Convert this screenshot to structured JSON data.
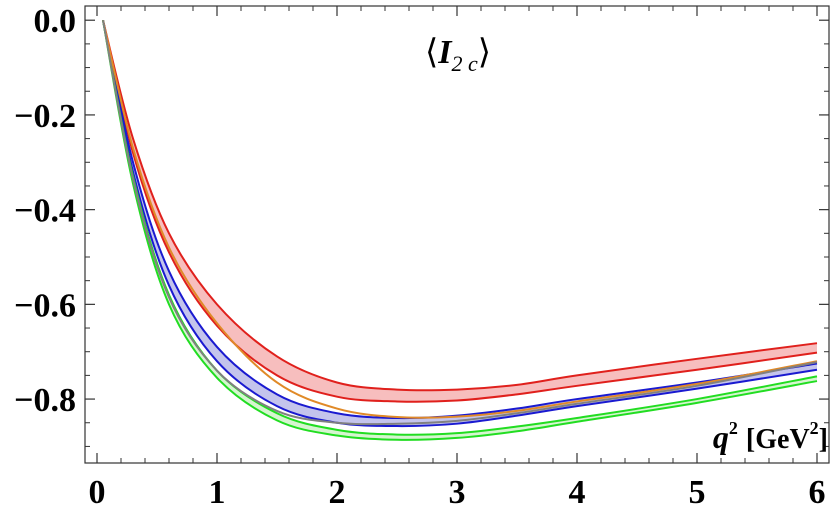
{
  "chart_data": {
    "type": "line",
    "title": "⟨I2 c⟩",
    "title_parts": {
      "main": "I",
      "sub": "2 c",
      "open": "⟨",
      "close": "⟩"
    },
    "xlabel": "q2 [GeV2]",
    "xlabel_parts": {
      "var": "q",
      "sup": "2",
      "unit_open": "[GeV",
      "unit_sup": "2",
      "unit_close": "]"
    },
    "ylabel": "",
    "xlim": [
      -0.1,
      6.1
    ],
    "ylim": [
      -0.935,
      0.03
    ],
    "x_ticks": [
      0,
      1,
      2,
      3,
      4,
      5,
      6
    ],
    "x_tick_labels": [
      "0",
      "1",
      "2",
      "3",
      "4",
      "5",
      "6"
    ],
    "y_ticks": [
      0.0,
      -0.2,
      -0.4,
      -0.6,
      -0.8
    ],
    "y_tick_labels": [
      "0.0",
      "−0.2",
      "−0.4",
      "−0.6",
      "−0.8"
    ],
    "grid": false,
    "legend": "none",
    "bands": [
      {
        "color": "#e0201c",
        "fill": "#f4a8a8",
        "upper": {
          "x": [
            0.05,
            0.3,
            0.6,
            1.0,
            1.5,
            2.0,
            2.5,
            3.0,
            3.5,
            4.0,
            5.0,
            6.0
          ],
          "y": [
            0.0,
            -0.25,
            -0.45,
            -0.6,
            -0.71,
            -0.765,
            -0.78,
            -0.78,
            -0.77,
            -0.75,
            -0.715,
            -0.682
          ]
        },
        "lower": {
          "x": [
            0.05,
            0.3,
            0.6,
            1.0,
            1.5,
            2.0,
            2.5,
            3.0,
            3.5,
            4.0,
            5.0,
            6.0
          ],
          "y": [
            0.0,
            -0.28,
            -0.49,
            -0.645,
            -0.75,
            -0.795,
            -0.805,
            -0.803,
            -0.79,
            -0.772,
            -0.738,
            -0.702
          ]
        }
      },
      {
        "color": "#1a1ad0",
        "fill": "#b0b0e6",
        "upper": {
          "x": [
            0.05,
            0.3,
            0.6,
            1.0,
            1.5,
            2.0,
            2.5,
            3.0,
            3.5,
            4.0,
            5.0,
            6.0
          ],
          "y": [
            0.0,
            -0.3,
            -0.53,
            -0.69,
            -0.79,
            -0.83,
            -0.84,
            -0.835,
            -0.82,
            -0.8,
            -0.765,
            -0.725
          ]
        },
        "lower": {
          "x": [
            0.05,
            0.3,
            0.6,
            1.0,
            1.5,
            2.0,
            2.5,
            3.0,
            3.5,
            4.0,
            5.0,
            6.0
          ],
          "y": [
            0.0,
            -0.32,
            -0.56,
            -0.72,
            -0.815,
            -0.85,
            -0.857,
            -0.852,
            -0.835,
            -0.815,
            -0.778,
            -0.738
          ]
        }
      },
      {
        "color": "#22dd22",
        "fill": "#c8f2c0",
        "upper": {
          "x": [
            0.05,
            0.3,
            0.6,
            1.0,
            1.5,
            2.0,
            2.5,
            3.0,
            3.5,
            4.0,
            5.0,
            6.0
          ],
          "y": [
            0.0,
            -0.33,
            -0.58,
            -0.74,
            -0.83,
            -0.865,
            -0.875,
            -0.872,
            -0.858,
            -0.84,
            -0.8,
            -0.752
          ]
        },
        "lower": {
          "x": [
            0.05,
            0.3,
            0.6,
            1.0,
            1.5,
            2.0,
            2.5,
            3.0,
            3.5,
            4.0,
            5.0,
            6.0
          ],
          "y": [
            0.0,
            -0.345,
            -0.6,
            -0.755,
            -0.845,
            -0.877,
            -0.886,
            -0.882,
            -0.868,
            -0.848,
            -0.808,
            -0.762
          ]
        }
      }
    ],
    "lines": [
      {
        "color": "#e08a28",
        "x": [
          0.05,
          0.3,
          0.6,
          1.0,
          1.5,
          2.0,
          2.5,
          3.0,
          3.5,
          4.0,
          5.0,
          6.0
        ],
        "y": [
          0.0,
          -0.27,
          -0.48,
          -0.64,
          -0.765,
          -0.82,
          -0.838,
          -0.837,
          -0.825,
          -0.805,
          -0.768,
          -0.72
        ]
      },
      {
        "color": "#808080",
        "x": [
          0.05,
          0.3,
          0.6,
          1.0,
          1.5,
          2.0,
          2.5,
          3.0,
          3.5,
          4.0,
          5.0,
          6.0
        ],
        "y": [
          0.0,
          -0.335,
          -0.585,
          -0.74,
          -0.825,
          -0.85,
          -0.852,
          -0.846,
          -0.83,
          -0.81,
          -0.772,
          -0.722
        ]
      }
    ]
  }
}
